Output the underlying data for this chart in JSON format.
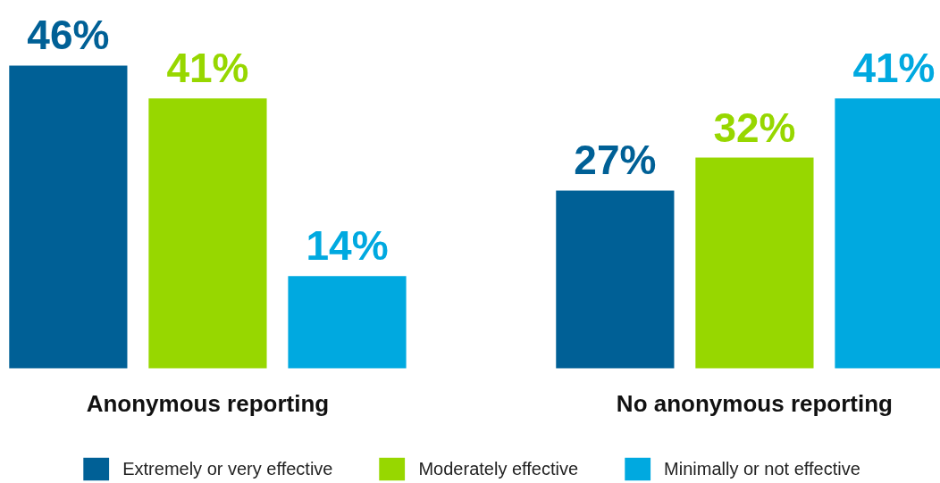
{
  "chart_data": {
    "type": "bar",
    "categories": [
      "Anonymous reporting",
      "No anonymous reporting"
    ],
    "series": [
      {
        "name": "Extremely or very effective",
        "color": "#006096",
        "values": [
          46,
          27
        ],
        "value_labels": [
          "46%",
          "27%"
        ]
      },
      {
        "name": "Moderately effective",
        "color": "#97d700",
        "values": [
          41,
          32
        ],
        "value_labels": [
          "41%",
          "32%"
        ]
      },
      {
        "name": "Minimally or not effective",
        "color": "#00a9e0",
        "values": [
          14,
          41
        ],
        "value_labels": [
          "14%",
          "41%"
        ]
      }
    ],
    "legend": "bottom"
  }
}
